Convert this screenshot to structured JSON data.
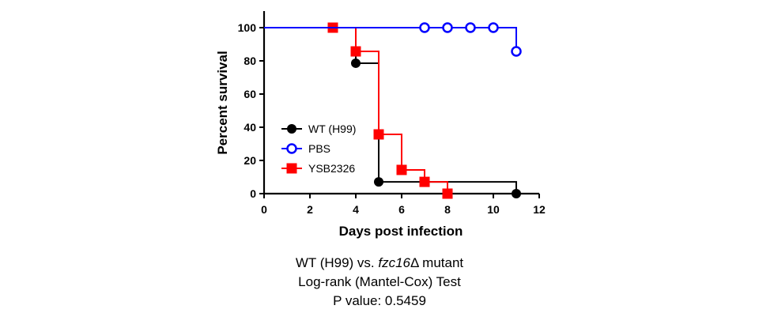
{
  "chart_data": {
    "type": "line",
    "step": true,
    "xlabel": "Days post infection",
    "ylabel": "Percent survival",
    "xlim": [
      0,
      12
    ],
    "ylim": [
      0,
      100
    ],
    "xticks": [
      0,
      2,
      4,
      6,
      8,
      10,
      12
    ],
    "yticks": [
      0,
      20,
      40,
      60,
      80,
      100
    ],
    "legend_position": "left",
    "series": [
      {
        "name": "WT (H99)",
        "color": "#000000",
        "marker": "filled-circle",
        "x": [
          0,
          4,
          5,
          11
        ],
        "y": [
          100,
          78.6,
          7.1,
          0
        ],
        "markers_x": [
          4,
          5,
          11
        ],
        "markers_y": [
          78.6,
          7.1,
          0
        ]
      },
      {
        "name": "PBS",
        "color": "#0000ff",
        "marker": "open-circle",
        "x": [
          0,
          11
        ],
        "y": [
          100,
          85.7
        ],
        "markers_x": [
          7,
          8,
          9,
          10,
          11
        ],
        "markers_y": [
          100,
          100,
          100,
          100,
          85.7
        ]
      },
      {
        "name": "YSB2326",
        "color": "#ff0000",
        "marker": "filled-square",
        "x": [
          0,
          4,
          5,
          6,
          7,
          8
        ],
        "y": [
          100,
          85.7,
          35.7,
          14.3,
          7.1,
          0
        ],
        "markers_x": [
          3,
          4,
          5,
          6,
          7,
          8
        ],
        "markers_y": [
          100,
          85.7,
          35.7,
          14.3,
          7.1,
          0
        ]
      }
    ]
  },
  "caption": {
    "line1_prefix": "WT (H99) vs. ",
    "line1_gene": "fzc16",
    "line1_suffix": "Δ mutant",
    "line2": "Log-rank (Mantel-Cox) Test",
    "line3": "P value: 0.5459"
  }
}
